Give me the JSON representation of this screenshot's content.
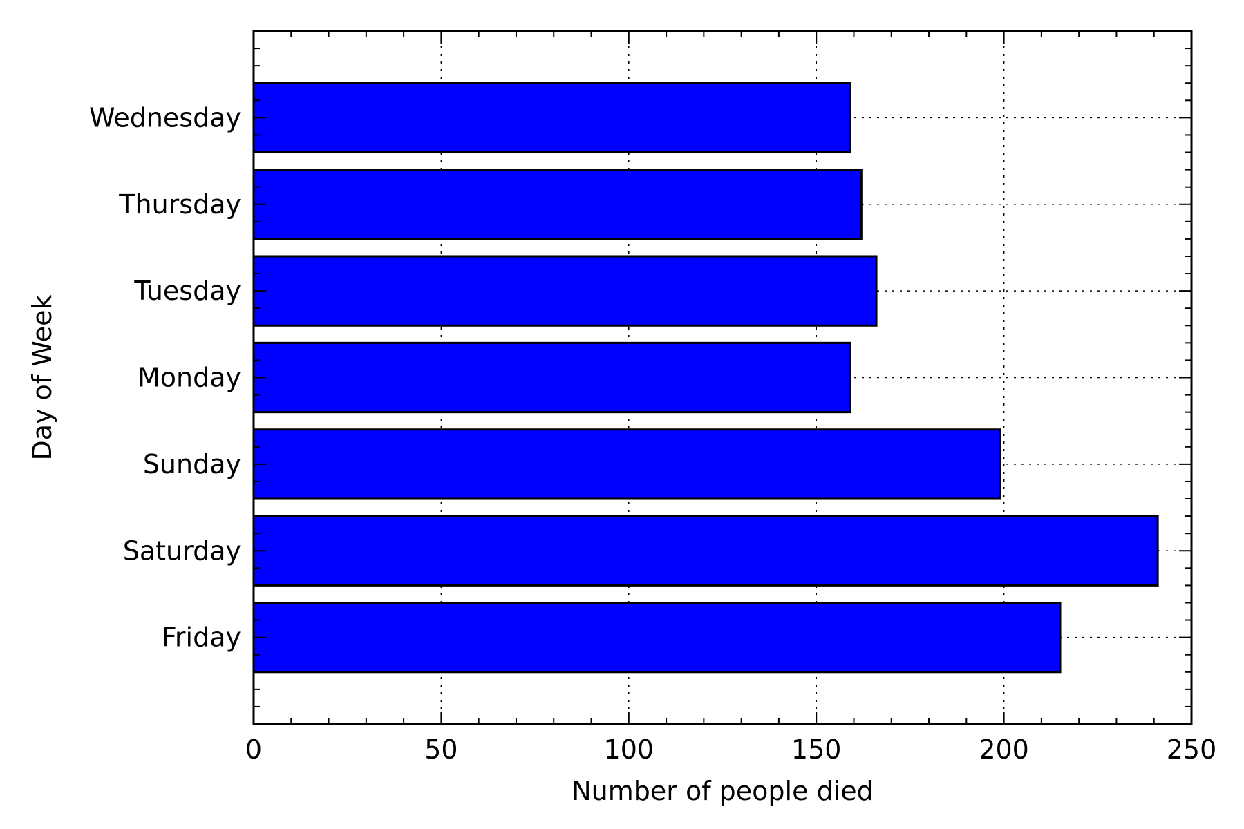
{
  "chart_data": {
    "type": "bar",
    "orientation": "horizontal",
    "title": "",
    "xlabel": "Number of people died",
    "ylabel": "Day of Week",
    "categories": [
      "Friday",
      "Saturday",
      "Sunday",
      "Monday",
      "Tuesday",
      "Thursday",
      "Wednesday"
    ],
    "values": [
      215,
      241,
      199,
      159,
      166,
      162,
      159
    ],
    "xlim": [
      0,
      250
    ],
    "xticks": [
      0,
      50,
      100,
      150,
      200,
      250
    ],
    "grid": true,
    "bar_color": "#0000ff",
    "edge_color": "#000000"
  }
}
